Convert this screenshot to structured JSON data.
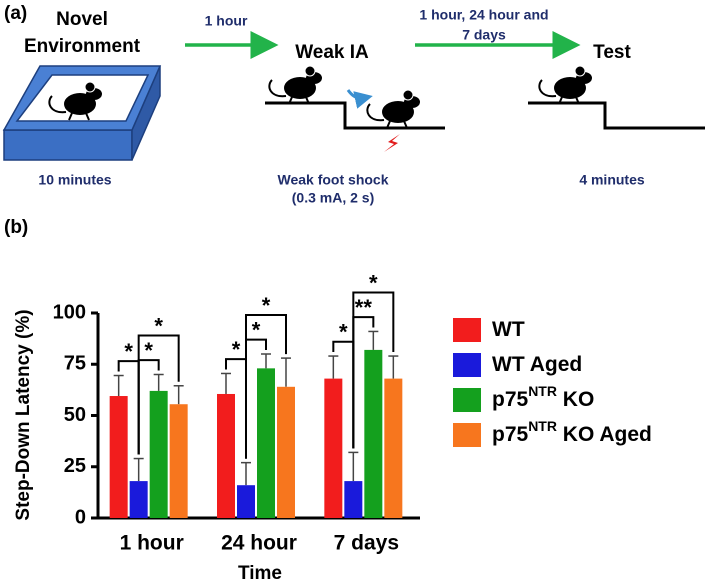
{
  "panel_a": {
    "label": "(a)",
    "stage1": {
      "title": [
        "Novel",
        "Environment"
      ],
      "duration": "10 minutes"
    },
    "interval1": "1 hour",
    "stage2": {
      "title": "Weak IA",
      "note": [
        "Weak foot shock",
        "(0.3 mA, 2 s)"
      ]
    },
    "interval2": [
      "1 hour, 24 hour and",
      "7 days"
    ],
    "stage3": {
      "title": "Test",
      "duration": "4 minutes"
    }
  },
  "chart_data": {
    "type": "bar",
    "panel_label": "(b)",
    "ylabel": "Step-Down Latency (%)",
    "xlabel": "Time",
    "categories": [
      "1 hour",
      "24 hour",
      "7 days"
    ],
    "series": [
      {
        "name": [
          "WT"
        ],
        "color": "#f21d1d",
        "values": [
          59.5,
          60.5,
          68
        ],
        "errors": [
          10,
          10,
          11
        ]
      },
      {
        "name": [
          "WT Aged"
        ],
        "color": "#1a1adb",
        "values": [
          18,
          16,
          18
        ],
        "errors": [
          11,
          11,
          14
        ]
      },
      {
        "name": [
          "p75",
          "NTR",
          " KO"
        ],
        "color": "#14a01e",
        "values": [
          62,
          73,
          82
        ],
        "errors": [
          8,
          7,
          9
        ]
      },
      {
        "name": [
          "p75",
          "NTR",
          " KO Aged"
        ],
        "color": "#f7761e",
        "values": [
          55.5,
          64,
          68
        ],
        "errors": [
          9,
          14,
          11
        ]
      }
    ],
    "ylim": [
      0,
      100
    ],
    "yticks": [
      0,
      25,
      50,
      75,
      100
    ],
    "significance": [
      {
        "category": 0,
        "from": 0,
        "to": 1,
        "label": "*"
      },
      {
        "category": 0,
        "from": 1,
        "to": 2,
        "label": "*"
      },
      {
        "category": 0,
        "from": 1,
        "to": 3,
        "label": "*"
      },
      {
        "category": 1,
        "from": 0,
        "to": 1,
        "label": "*"
      },
      {
        "category": 1,
        "from": 1,
        "to": 2,
        "label": "*"
      },
      {
        "category": 1,
        "from": 1,
        "to": 3,
        "label": "*"
      },
      {
        "category": 2,
        "from": 0,
        "to": 1,
        "label": "*"
      },
      {
        "category": 2,
        "from": 1,
        "to": 2,
        "label": "**"
      },
      {
        "category": 2,
        "from": 1,
        "to": 3,
        "label": "*"
      }
    ]
  }
}
